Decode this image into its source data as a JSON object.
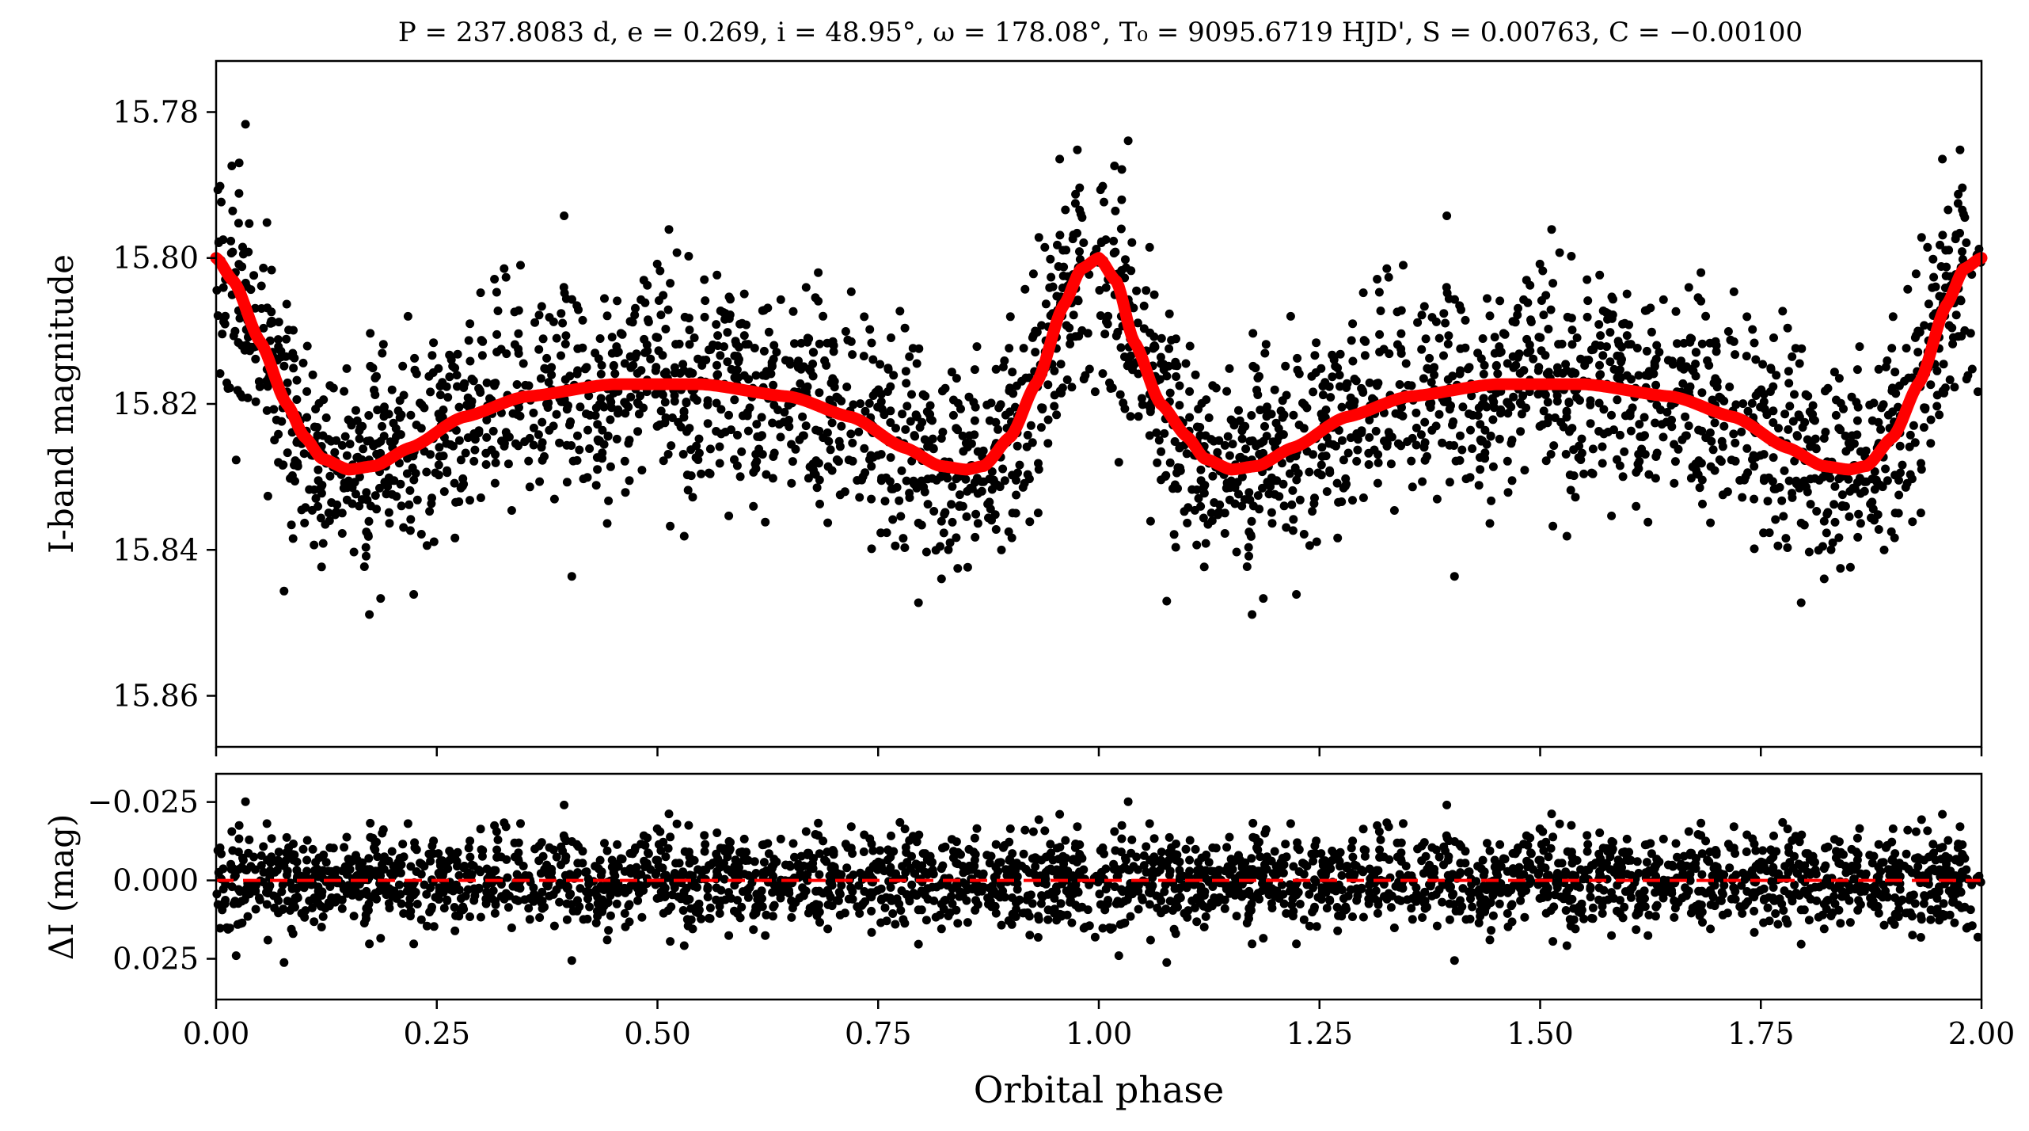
{
  "chart_data": [
    {
      "panel": "top",
      "type": "scatter",
      "title": "P = 237.8083 d, e = 0.269, i = 48.95°, ω = 178.08°, T₀ = 9095.6719 HJD', S = 0.00763, C = −0.00100",
      "xlabel": "",
      "ylabel": "I-band magnitude",
      "xlim": [
        0.0,
        2.0
      ],
      "ylim": [
        15.867,
        15.773
      ],
      "y_inverted": true,
      "yticks": [
        "15.78",
        "15.80",
        "15.82",
        "15.84",
        "15.86"
      ],
      "grid": false,
      "marker_color": "#000000",
      "model_color": "#ff0000",
      "model_curve": {
        "x": [
          0.0,
          0.02,
          0.05,
          0.08,
          0.1,
          0.12,
          0.15,
          0.18,
          0.22,
          0.28,
          0.35,
          0.45,
          0.55,
          0.65,
          0.72,
          0.78,
          0.82,
          0.85,
          0.87,
          0.9,
          0.93,
          0.96,
          0.98,
          1.0,
          1.02,
          1.04,
          1.07,
          1.1,
          1.12,
          1.15,
          1.18,
          1.22,
          1.28,
          1.35,
          1.45,
          1.55,
          1.65,
          1.72,
          1.78,
          1.82,
          1.85,
          1.87,
          1.9,
          1.93,
          1.96,
          1.98,
          2.0
        ],
        "y": [
          15.8,
          15.8032,
          15.8115,
          15.82,
          15.8245,
          15.8275,
          15.829,
          15.8285,
          15.826,
          15.8218,
          15.819,
          15.8173,
          15.8173,
          15.819,
          15.8218,
          15.826,
          15.8285,
          15.829,
          15.8285,
          15.8245,
          15.817,
          15.8065,
          15.8015,
          15.8,
          15.8032,
          15.8115,
          15.82,
          15.8245,
          15.8275,
          15.829,
          15.8285,
          15.826,
          15.8218,
          15.819,
          15.8173,
          15.8173,
          15.819,
          15.8218,
          15.826,
          15.8285,
          15.829,
          15.8285,
          15.8245,
          15.817,
          15.8065,
          15.8015,
          15.8
        ]
      },
      "data_points_note": "approx. 2800 photometric measurements in two repeated cycles; scatter ≈ 0.008 mag around the model"
    },
    {
      "panel": "bottom",
      "type": "scatter",
      "xlabel": "Orbital phase",
      "ylabel": "ΔI (mag)",
      "xlim": [
        0.0,
        2.0
      ],
      "ylim": [
        0.038,
        -0.034
      ],
      "y_inverted": true,
      "xticks": [
        "0.00",
        "0.25",
        "0.50",
        "0.75",
        "1.00",
        "1.25",
        "1.50",
        "1.75",
        "2.00"
      ],
      "yticks": [
        "−0.025",
        "0.000",
        "0.025"
      ],
      "reference_line": {
        "y": 0.0,
        "style": "dashed",
        "color": "#ff0000"
      },
      "marker_color": "#000000",
      "residual_scatter_mag": 0.0075
    }
  ]
}
